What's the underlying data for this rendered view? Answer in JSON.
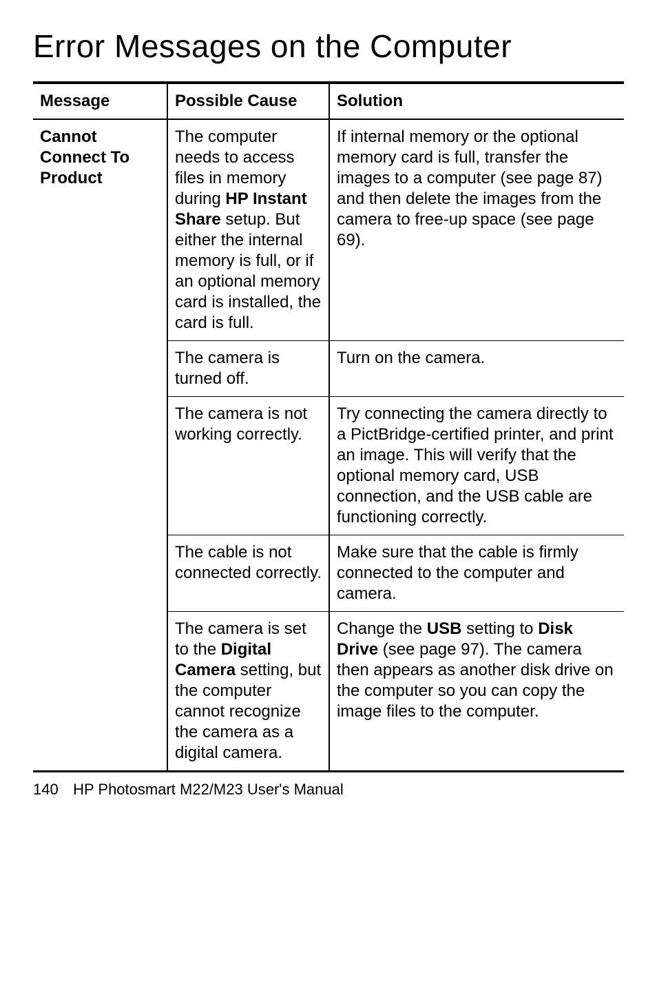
{
  "title": "Error Messages on the Computer",
  "table": {
    "headers": {
      "message": "Message",
      "cause": "Possible Cause",
      "solution": "Solution"
    },
    "message": "Cannot Connect To Product",
    "rows": [
      {
        "cause_pre": "The computer needs to access files in memory during ",
        "cause_b1": "HP Instant Share",
        "cause_post": " setup. But either the internal memory is full, or if an optional memory card is installed, the card is full.",
        "solution": "If internal memory or the optional memory card is full, transfer the images to a computer (see page 87) and then delete the images from the camera to free-up space (see page 69)."
      },
      {
        "cause": "The camera is turned off.",
        "solution": "Turn on the camera."
      },
      {
        "cause": "The camera is not working correctly.",
        "solution": "Try connecting the camera directly to a PictBridge-certified printer, and print an image. This will verify that the optional memory card, USB connection, and the USB cable are functioning correctly."
      },
      {
        "cause": "The cable is not connected correctly.",
        "solution": "Make sure that the cable is firmly connected to the computer and camera."
      },
      {
        "cause_pre": "The camera is set to the ",
        "cause_b1": "Digital Camera",
        "cause_post": " setting, but the computer cannot recognize the camera as a digital camera.",
        "sol_pre": "Change the ",
        "sol_b1": "USB",
        "sol_mid1": " setting to ",
        "sol_b2": "Disk Drive",
        "sol_post": " (see page 97). The camera then appears as another disk drive on the computer so you can copy the image files to the computer."
      }
    ]
  },
  "footer": {
    "page": "140",
    "text": "HP Photosmart M22/M23 User's Manual"
  }
}
